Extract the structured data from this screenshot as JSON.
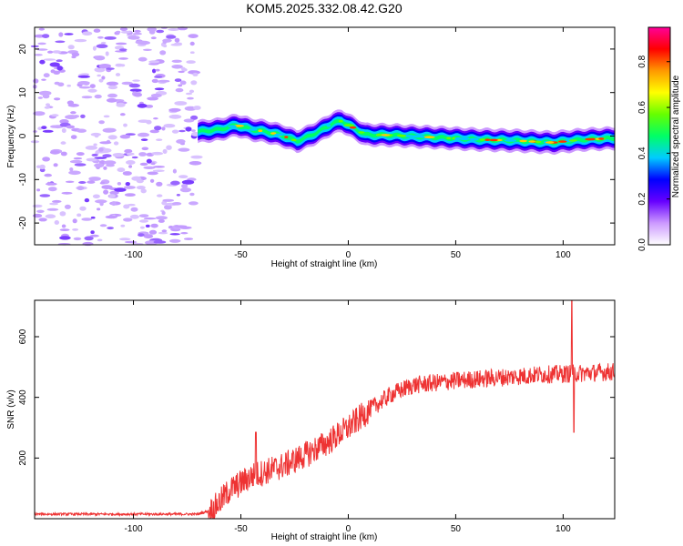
{
  "chart_data": [
    {
      "type": "heatmap",
      "title": "KOM5.2025.332.08.42.G20",
      "xlabel": "Height of straight line (km)",
      "ylabel": "Frequency (Hz)",
      "xlim": [
        -146,
        124
      ],
      "ylim": [
        -25,
        25
      ],
      "xticks": [
        -100,
        -50,
        0,
        50,
        100
      ],
      "yticks": [
        -20,
        -10,
        0,
        10,
        20
      ],
      "colorbar": {
        "label": "Normalized spectral amplitude",
        "range": [
          0,
          0.95
        ],
        "ticks": [
          "0.0",
          "0.2",
          "0.4",
          "0.6",
          "0.8"
        ],
        "colors": [
          "#ffffff",
          "#cc99ff",
          "#6600ff",
          "#0000ff",
          "#00ccff",
          "#00ff66",
          "#66ff00",
          "#ffff00",
          "#ff9900",
          "#ff0000",
          "#ff0099"
        ]
      },
      "ridge_trace": [
        {
          "x": -70,
          "y": 1.0
        },
        {
          "x": -60,
          "y": 1.5
        },
        {
          "x": -52,
          "y": 2.5
        },
        {
          "x": -45,
          "y": 1.5
        },
        {
          "x": -38,
          "y": 1.0
        },
        {
          "x": -30,
          "y": 0.0
        },
        {
          "x": -24,
          "y": -1.2
        },
        {
          "x": -18,
          "y": 0.0
        },
        {
          "x": -12,
          "y": 1.5
        },
        {
          "x": -7,
          "y": 3.0
        },
        {
          "x": -3,
          "y": 3.5
        },
        {
          "x": 2,
          "y": 2.0
        },
        {
          "x": 8,
          "y": 0.3
        },
        {
          "x": 20,
          "y": 0.2
        },
        {
          "x": 40,
          "y": -0.3
        },
        {
          "x": 60,
          "y": -0.8
        },
        {
          "x": 80,
          "y": -1.1
        },
        {
          "x": 95,
          "y": -1.5
        },
        {
          "x": 110,
          "y": -0.8
        },
        {
          "x": 124,
          "y": -0.5
        }
      ],
      "noise_region_x": [
        -146,
        -70
      ]
    },
    {
      "type": "line",
      "xlabel": "Height of straight line (km)",
      "ylabel": "SNR (v/v)",
      "xlim": [
        -146,
        124
      ],
      "ylim": [
        0,
        720
      ],
      "xticks": [
        -100,
        -50,
        0,
        50,
        100
      ],
      "yticks": [
        200,
        400,
        600
      ],
      "series": [
        {
          "name": "SNR",
          "color": "#ee3333",
          "trend": [
            {
              "x": -146,
              "y": 15
            },
            {
              "x": -100,
              "y": 15
            },
            {
              "x": -70,
              "y": 15
            },
            {
              "x": -63,
              "y": 30
            },
            {
              "x": -55,
              "y": 95
            },
            {
              "x": -45,
              "y": 140
            },
            {
              "x": -30,
              "y": 175
            },
            {
              "x": -20,
              "y": 210
            },
            {
              "x": -10,
              "y": 250
            },
            {
              "x": 0,
              "y": 300
            },
            {
              "x": 10,
              "y": 360
            },
            {
              "x": 20,
              "y": 410
            },
            {
              "x": 30,
              "y": 440
            },
            {
              "x": 50,
              "y": 455
            },
            {
              "x": 70,
              "y": 465
            },
            {
              "x": 90,
              "y": 475
            },
            {
              "x": 110,
              "y": 480
            },
            {
              "x": 124,
              "y": 485
            }
          ],
          "spikes": [
            {
              "x": -43,
              "y": 285
            },
            {
              "x": 104,
              "y": 720
            },
            {
              "x": 105,
              "y": 285
            }
          ]
        }
      ]
    }
  ]
}
